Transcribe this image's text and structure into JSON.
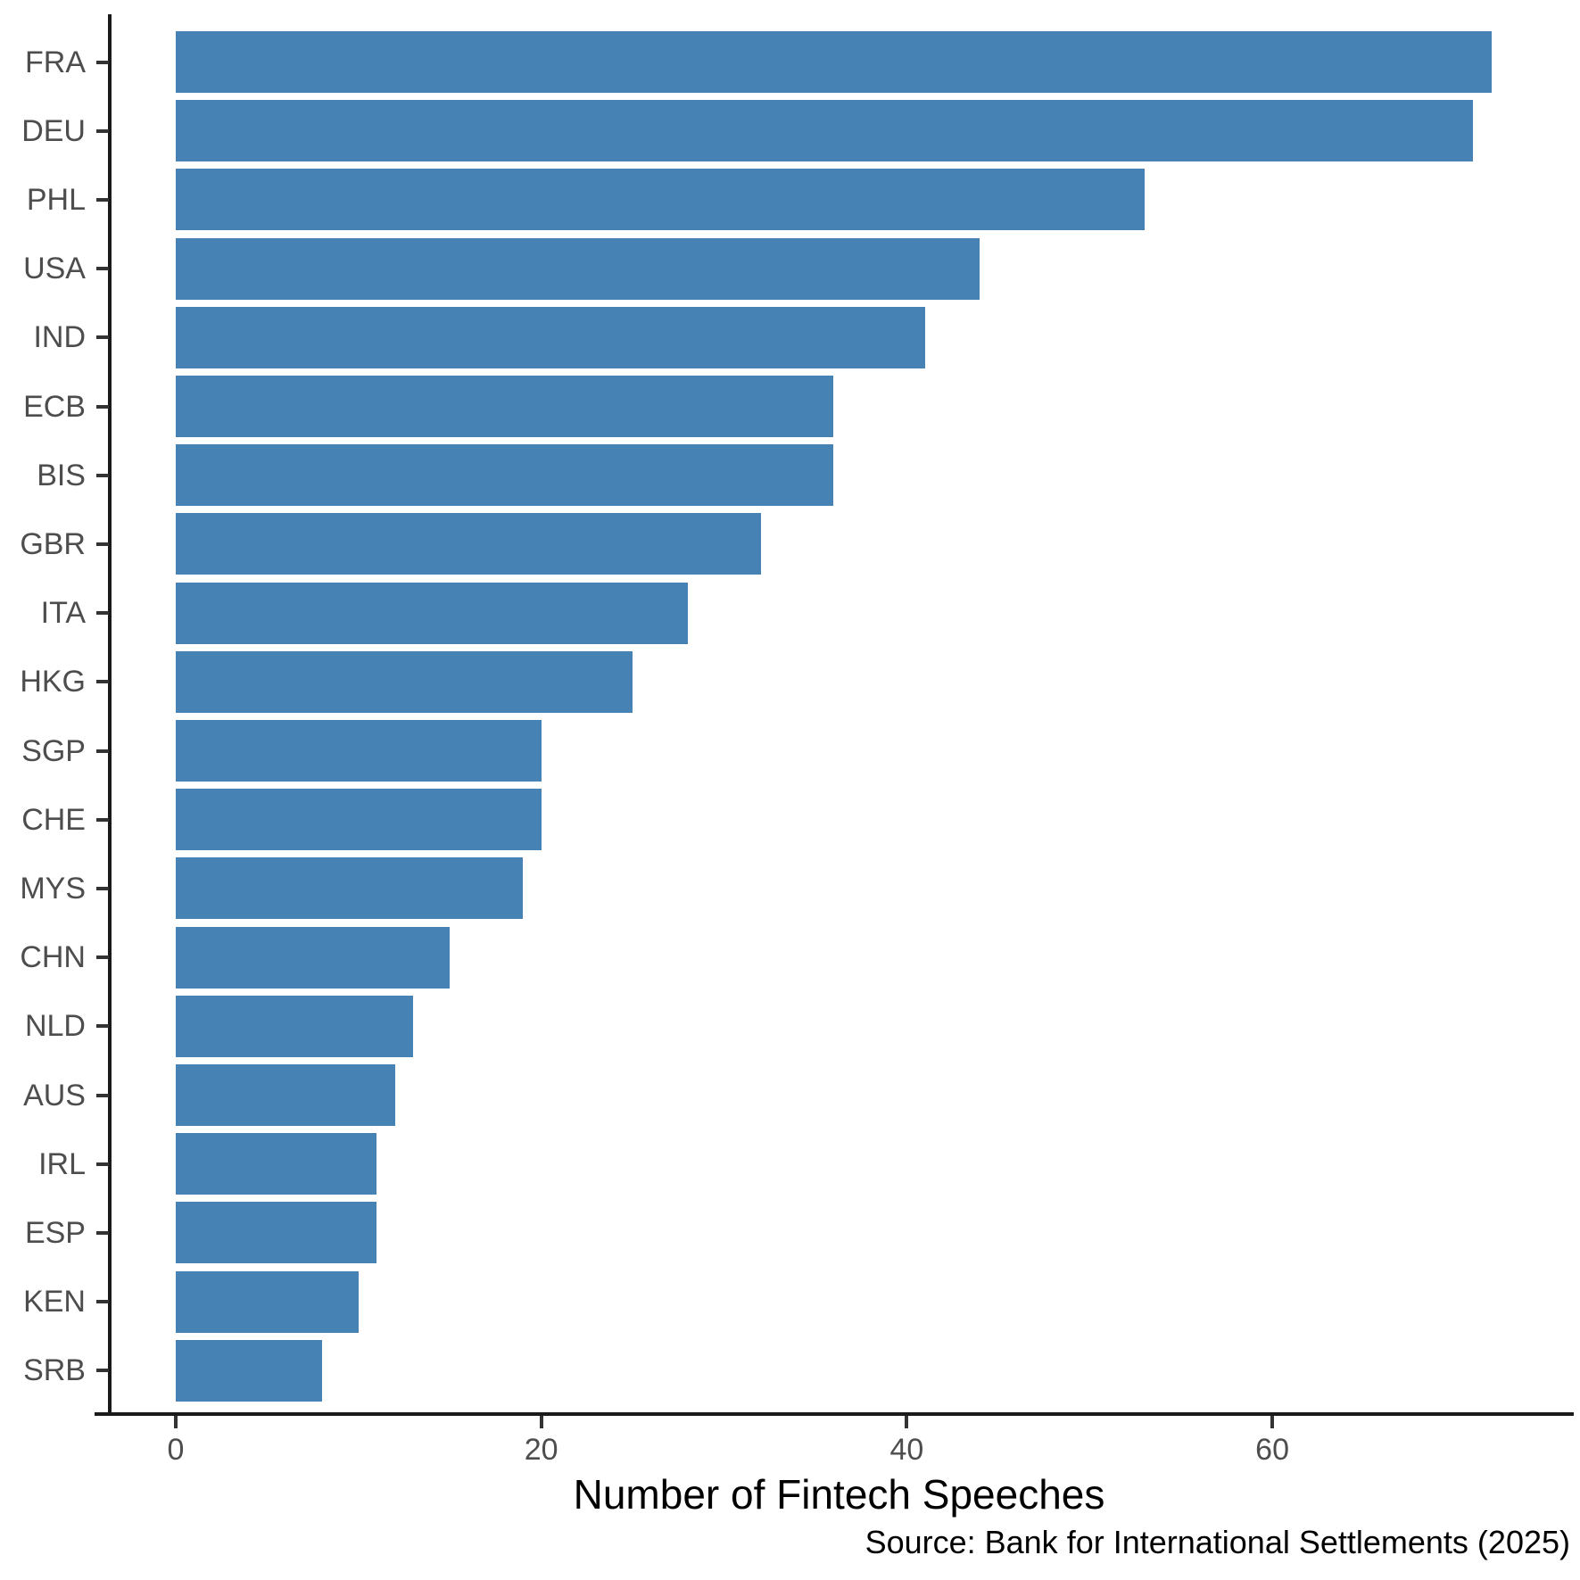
{
  "figure": {
    "xlabel": "Number of Fintech Speeches",
    "caption": "Source: Bank for International Settlements (2025)"
  },
  "chart_data": {
    "type": "bar",
    "orientation": "horizontal",
    "title": "",
    "xlabel": "Number of Fintech Speeches",
    "ylabel": "",
    "caption": "Source: Bank for International Settlements (2025)",
    "categories": [
      "FRA",
      "DEU",
      "PHL",
      "USA",
      "IND",
      "ECB",
      "BIS",
      "GBR",
      "ITA",
      "HKG",
      "SGP",
      "CHE",
      "MYS",
      "CHN",
      "NLD",
      "AUS",
      "IRL",
      "ESP",
      "KEN",
      "SRB"
    ],
    "values": [
      72,
      71,
      53,
      44,
      41,
      36,
      36,
      32,
      28,
      25,
      20,
      20,
      19,
      15,
      13,
      12,
      11,
      11,
      10,
      8
    ],
    "xlim": [
      0,
      72
    ],
    "xticks": [
      0,
      20,
      40,
      60
    ],
    "grid": false,
    "legend": "none",
    "bar_color": "#4682B4",
    "axis_text_color": "#4d4d4d",
    "axis_line_color": "#1a1a1a"
  }
}
